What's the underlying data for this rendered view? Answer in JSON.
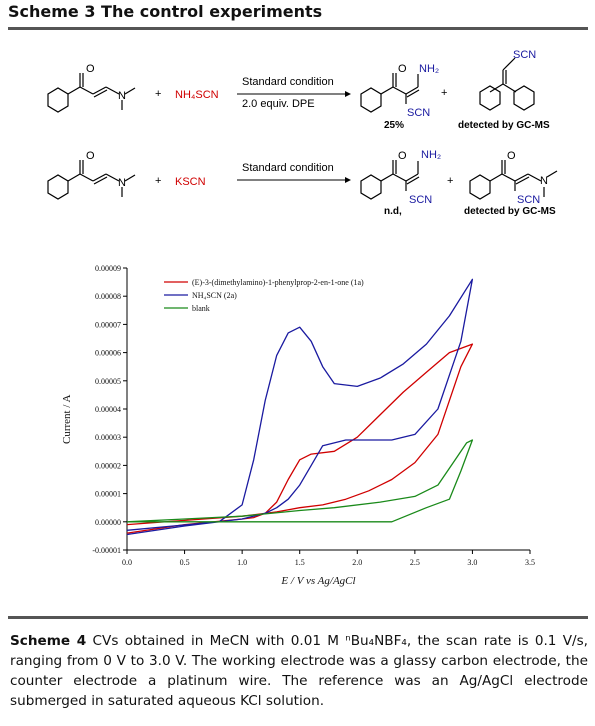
{
  "scheme3": {
    "title": "Scheme 3 The control experiments",
    "row1": {
      "reagent": "NH₄SCN",
      "condition_top": "Standard condition",
      "condition_bottom": "2.0 equiv. DPE",
      "product_yield": "25%",
      "side_product_note": "detected by GC-MS",
      "label_nh2": "NH₂",
      "label_scn": "SCN",
      "label_scn2": "SCN",
      "label_n": "N"
    },
    "row2": {
      "reagent": "KSCN",
      "condition_top": "Standard condition",
      "product_yield": "n.d,",
      "side_product_note": "detected by GC-MS",
      "label_nh2": "NH₂",
      "label_scn": "SCN",
      "label_scn2": "SCN",
      "label_n": "N",
      "label_n2": "N"
    },
    "plus": "+"
  },
  "chart_data": {
    "type": "line",
    "xlabel": "E / V vs  Ag/AgCl",
    "ylabel": "Current / A",
    "xlim": [
      0.0,
      3.5
    ],
    "ylim": [
      -1e-05,
      9e-05
    ],
    "x_ticks": [
      "0.0",
      "0.5",
      "1.0",
      "1.5",
      "2.0",
      "2.5",
      "3.0",
      "3.5"
    ],
    "y_ticks": [
      "-0.00001",
      "0.00000",
      "0.00001",
      "0.00002",
      "0.00003",
      "0.00004",
      "0.00005",
      "0.00006",
      "0.00007",
      "0.00008",
      "0.00009"
    ],
    "legend_position": "top-left",
    "grid": false,
    "series": [
      {
        "name": "(E)-3-(dimethylamino)-1-phenylprop-2-en-1-one (1a)",
        "color": "#d00000",
        "x": [
          0.0,
          0.5,
          1.0,
          1.1,
          1.2,
          1.3,
          1.4,
          1.5,
          1.6,
          1.8,
          2.0,
          2.2,
          2.4,
          2.6,
          2.8,
          3.0,
          2.9,
          2.7,
          2.5,
          2.3,
          2.1,
          1.9,
          1.7,
          1.5,
          1.3,
          1.0,
          0.5,
          0.0
        ],
        "y": [
          -4e-06,
          -1e-06,
          1e-06,
          1.5e-06,
          3e-06,
          7e-06,
          1.5e-05,
          2.2e-05,
          2.4e-05,
          2.5e-05,
          3e-05,
          3.8e-05,
          4.6e-05,
          5.3e-05,
          6e-05,
          6.3e-05,
          5.5e-05,
          3.1e-05,
          2.1e-05,
          1.5e-05,
          1.1e-05,
          8e-06,
          6e-06,
          5e-06,
          3.5e-06,
          2e-06,
          5e-07,
          -1e-06
        ]
      },
      {
        "name": "NH₄SCN (2a)",
        "color": "#1a1aa0",
        "x": [
          0.0,
          0.4,
          0.8,
          1.0,
          1.1,
          1.2,
          1.3,
          1.4,
          1.5,
          1.6,
          1.7,
          1.8,
          2.0,
          2.2,
          2.4,
          2.6,
          2.8,
          3.0,
          2.9,
          2.7,
          2.5,
          2.3,
          2.1,
          1.9,
          1.7,
          1.6,
          1.5,
          1.4,
          1.3,
          1.2,
          1.0,
          0.5,
          0.0
        ],
        "y": [
          -3e-06,
          -1.5e-06,
          0.0,
          6e-06,
          2.2e-05,
          4.3e-05,
          5.9e-05,
          6.7e-05,
          6.9e-05,
          6.4e-05,
          5.5e-05,
          4.9e-05,
          4.8e-05,
          5.1e-05,
          5.6e-05,
          6.3e-05,
          7.3e-05,
          8.6e-05,
          6.4e-05,
          4e-05,
          3.1e-05,
          2.9e-05,
          2.9e-05,
          2.9e-05,
          2.7e-05,
          2e-05,
          1.3e-05,
          8e-06,
          5e-06,
          3e-06,
          1e-06,
          -1.5e-06,
          -4.5e-06
        ]
      },
      {
        "name": "blank",
        "color": "#1a8a1a",
        "x": [
          0.0,
          0.5,
          1.0,
          1.5,
          2.0,
          2.3,
          2.6,
          2.8,
          2.9,
          3.0,
          2.95,
          2.85,
          2.7,
          2.5,
          2.2,
          1.8,
          1.5,
          1.0,
          0.5,
          0.0
        ],
        "y": [
          0.0,
          0.0,
          0.0,
          0.0,
          0.0,
          0.0,
          5e-06,
          8e-06,
          1.8e-05,
          2.9e-05,
          2.8e-05,
          2.2e-05,
          1.3e-05,
          9e-06,
          7e-06,
          5e-06,
          4e-06,
          2e-06,
          1e-06,
          0.0
        ]
      }
    ]
  },
  "scheme4": {
    "caption_label": "Scheme 4",
    "caption_text": " CVs obtained in MeCN with 0.01 M ⁿBu₄NBF₄, the scan rate is 0.1 V/s, ranging from 0 V to 3.0 V. The working electrode was a glassy carbon electrode, the counter electrode a platinum wire. The reference was an Ag/AgCl electrode submerged in saturated aqueous KCl solution."
  }
}
